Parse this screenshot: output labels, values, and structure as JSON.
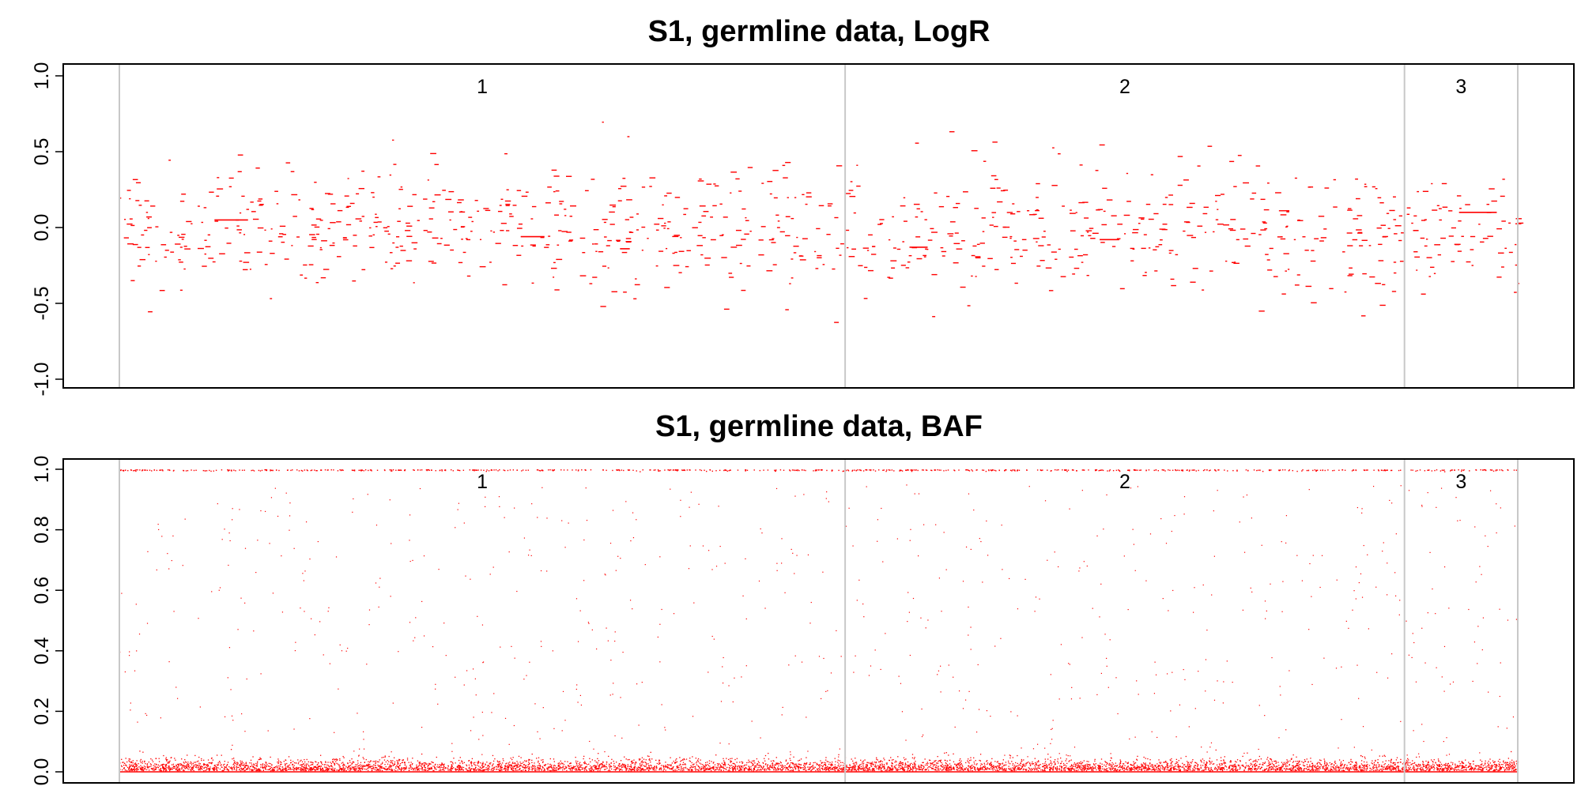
{
  "chart_data": [
    {
      "type": "scatter",
      "title": "S1, germline data, LogR",
      "ylim": [
        -1.0,
        1.0
      ],
      "yticks": [
        -1.0,
        -0.5,
        0.0,
        0.5,
        1.0
      ],
      "ytick_labels": [
        "-1.0",
        "-0.5",
        "0.0",
        "0.5",
        "1.0"
      ],
      "grid": false,
      "point_color": "#ff0000",
      "boundary_color": "#c8c8c8",
      "chromosomes": [
        {
          "label": "1",
          "start": 0,
          "end": 0.519
        },
        {
          "label": "2",
          "start": 0.519,
          "end": 0.919
        },
        {
          "label": "3",
          "start": 0.919,
          "end": 1.0
        }
      ],
      "segments": [
        {
          "x0": 0.068,
          "x1": 0.092,
          "y": 0.05
        },
        {
          "x0": 0.287,
          "x1": 0.304,
          "y": -0.06
        },
        {
          "x0": 0.358,
          "x1": 0.365,
          "y": -0.14
        },
        {
          "x0": 0.565,
          "x1": 0.578,
          "y": -0.13
        },
        {
          "x0": 0.701,
          "x1": 0.715,
          "y": -0.08
        },
        {
          "x0": 0.958,
          "x1": 0.985,
          "y": 0.1
        }
      ]
    },
    {
      "type": "scatter",
      "title": "S1, germline data, BAF",
      "ylim": [
        0.0,
        1.0
      ],
      "yticks": [
        0.0,
        0.2,
        0.4,
        0.6,
        0.8,
        1.0
      ],
      "ytick_labels": [
        "0.0",
        "0.2",
        "0.4",
        "0.6",
        "0.8",
        "1.0"
      ],
      "grid": false,
      "point_color": "#ff0000",
      "boundary_color": "#c8c8c8",
      "chromosomes": [
        {
          "label": "1",
          "start": 0,
          "end": 0.519
        },
        {
          "label": "2",
          "start": 0.519,
          "end": 0.919
        },
        {
          "label": "3",
          "start": 0.919,
          "end": 1.0
        }
      ],
      "baseline_y": 0.0
    }
  ]
}
